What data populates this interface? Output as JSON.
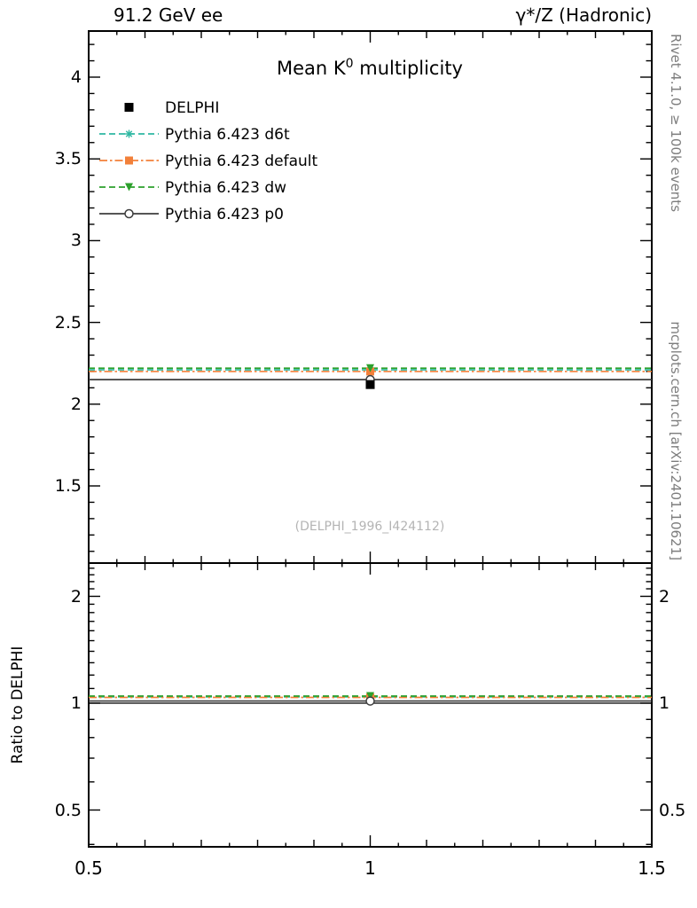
{
  "header": {
    "left": "91.2 GeV ee",
    "right": "γ*/Z (Hadronic)"
  },
  "title": {
    "pre": "Mean K",
    "sup": "0",
    "post": " multiplicity"
  },
  "watermark": "(DELPHI_1996_I424112)",
  "right_margin": {
    "top": "Rivet 4.1.0, ≥ 100k events",
    "bottom": "mcplots.cern.ch [arXiv:2401.10621]"
  },
  "axes": {
    "ratio_label": "Ratio to DELPHI",
    "x_ticks": [
      "0.5",
      "1",
      "1.5"
    ],
    "main_y_ticks": [
      "4",
      "3.5",
      "3",
      "2.5",
      "2",
      "1.5"
    ],
    "ratio_y_ticks": [
      "2",
      "1",
      "0.5"
    ]
  },
  "chart_data": {
    "type": "line",
    "title": "Mean K0 multiplicity",
    "xlabel": "",
    "xlim": [
      0.5,
      1.5
    ],
    "main_panel": {
      "ylim": [
        1.03,
        4.28
      ],
      "scale": "linear",
      "y_ticks": [
        1.5,
        2,
        2.5,
        3,
        3.5,
        4
      ]
    },
    "ratio_panel": {
      "ylim": [
        0.39,
        2.48
      ],
      "scale": "log",
      "ylabel": "Ratio to DELPHI",
      "y_ticks": [
        0.5,
        1,
        2
      ]
    },
    "x_center": 1.0,
    "bin_edges": [
      0.5,
      1.5
    ],
    "legend_position": "top-left",
    "data_series": {
      "id": "delphi",
      "name": "DELPHI",
      "marker": "filled-square",
      "color": "#000000",
      "value": 2.12,
      "ratio": 1.0
    },
    "mc_series": [
      {
        "id": "d6t",
        "name": "Pythia 6.423 d6t",
        "color": "#2fb8a2",
        "line": "dashed",
        "marker": "star",
        "value": 2.21,
        "ratio": 1.042
      },
      {
        "id": "default",
        "name": "Pythia 6.423 default",
        "color": "#f2803a",
        "line": "dashdot",
        "marker": "filled-square",
        "value": 2.2,
        "ratio": 1.038
      },
      {
        "id": "dw",
        "name": "Pythia 6.423 dw",
        "color": "#2ca02c",
        "line": "dashed",
        "marker": "triangle-down",
        "value": 2.22,
        "ratio": 1.047
      },
      {
        "id": "p0",
        "name": "Pythia 6.423 p0",
        "color": "#3d3d3d",
        "line": "solid",
        "marker": "open-circle",
        "value": 2.15,
        "ratio": 1.014
      }
    ]
  }
}
